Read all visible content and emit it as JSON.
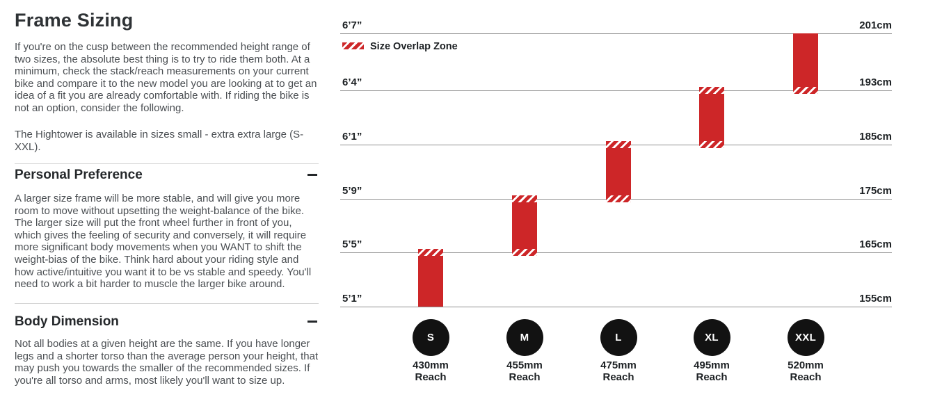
{
  "page": {
    "title": "Frame Sizing",
    "intro": [
      "If you're on the cusp between the recommended height range of two sizes, the absolute best thing is to try to ride them both. At a minimum, check the stack/reach measurements on your current bike and compare it to the new model you are looking at to get an idea of a fit you are already comfortable with. If riding the bike is not an option, consider the following.",
      "The Hightower is available in sizes small - extra extra large (S-XXL)."
    ],
    "sections": [
      {
        "title": "Personal Preference",
        "body": "A larger size frame will be more stable, and will give you more room to move without upsetting the weight-balance of the bike. The larger size will put the front wheel further in front of you, which gives the feeling of security and conversely, it will require more significant body movements when you WANT to shift the weight-bias of the bike. Think hard about your riding style and how active/intuitive you want it to be vs stable and speedy. You'll need to work a bit harder to muscle the larger bike around."
      },
      {
        "title": "Body Dimension",
        "body": "Not all bodies at a given height are the same. If you have longer legs and a shorter torso than the average person your height, that may push you towards the smaller of the recommended sizes. If you're all torso and arms, most likely you'll want to size up."
      }
    ]
  },
  "chart_data": {
    "type": "bar",
    "subtype": "vertical-range-bars",
    "title": "",
    "legend": "Size Overlap Zone",
    "legend_position": "top-left",
    "grid": true,
    "ylim_cm": [
      155,
      201
    ],
    "gridlines": [
      {
        "ft": "6’7”",
        "cm": "201cm"
      },
      {
        "ft": "6’4”",
        "cm": "193cm"
      },
      {
        "ft": "6’1”",
        "cm": "185cm"
      },
      {
        "ft": "5’9”",
        "cm": "175cm"
      },
      {
        "ft": "5’5”",
        "cm": "165cm"
      },
      {
        "ft": "5’1”",
        "cm": "155cm"
      }
    ],
    "reach_word": "Reach",
    "sizes": [
      {
        "label": "S",
        "reach_mm": 430,
        "reach_text": "430mm",
        "range_cm": [
          155,
          165
        ],
        "top_line": 4,
        "bottom_line": 5,
        "overlap_top": true,
        "overlap_bottom": false
      },
      {
        "label": "M",
        "reach_mm": 455,
        "reach_text": "455mm",
        "range_cm": [
          165,
          175
        ],
        "top_line": 3,
        "bottom_line": 4,
        "overlap_top": true,
        "overlap_bottom": true
      },
      {
        "label": "L",
        "reach_mm": 475,
        "reach_text": "475mm",
        "range_cm": [
          175,
          185
        ],
        "top_line": 2,
        "bottom_line": 3,
        "overlap_top": true,
        "overlap_bottom": true
      },
      {
        "label": "XL",
        "reach_mm": 495,
        "reach_text": "495mm",
        "range_cm": [
          185,
          193
        ],
        "top_line": 1,
        "bottom_line": 2,
        "overlap_top": true,
        "overlap_bottom": true
      },
      {
        "label": "XXL",
        "reach_mm": 520,
        "reach_text": "520mm",
        "range_cm": [
          193,
          201
        ],
        "top_line": 0,
        "bottom_line": 1,
        "overlap_top": false,
        "overlap_bottom": true
      }
    ],
    "overlap_zones_cm": [
      165,
      175,
      185,
      193
    ],
    "colors": {
      "bar_red": "#cd2628",
      "hatch_white": "#ffffff",
      "circle_black": "#121212",
      "gridline_gray": "#8f8f8f",
      "text_dark": "#1d2124"
    }
  }
}
